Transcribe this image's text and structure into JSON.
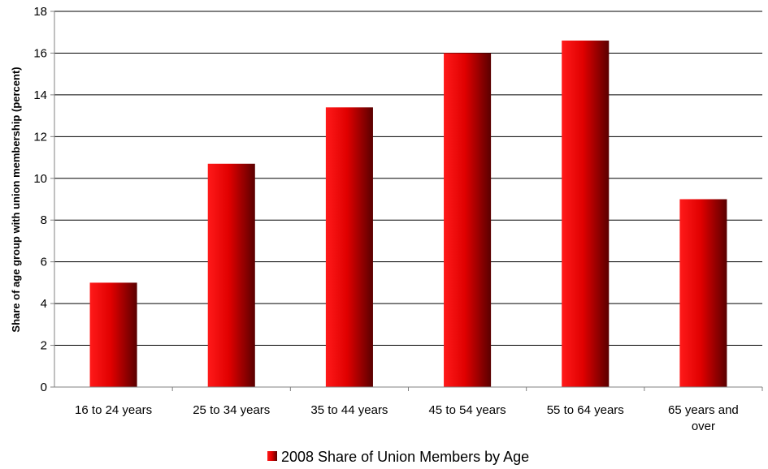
{
  "chart_data": {
    "type": "bar",
    "title": "",
    "xlabel": "",
    "ylabel": "Share of age group with union membership (percent)",
    "categories": [
      [
        "16 to 24 years"
      ],
      [
        "25 to 34 years"
      ],
      [
        "35 to 44 years"
      ],
      [
        "45 to 54 years"
      ],
      [
        "55 to 64 years"
      ],
      [
        "65 years and",
        "over"
      ]
    ],
    "series": [
      {
        "name": "2008 Share of Union Members by Age",
        "values": [
          5.0,
          10.7,
          13.4,
          16.0,
          16.6,
          9.0
        ]
      }
    ],
    "ylim": [
      0,
      18
    ],
    "yticks": [
      0,
      2,
      4,
      6,
      8,
      10,
      12,
      14,
      16,
      18
    ],
    "grid": true,
    "legend_position": "bottom",
    "colors": {
      "bar_light": "#ff1a1a",
      "bar_mid": "#e00000",
      "bar_dark": "#5a0000",
      "grid": "#000000",
      "axis": "#808080"
    }
  }
}
